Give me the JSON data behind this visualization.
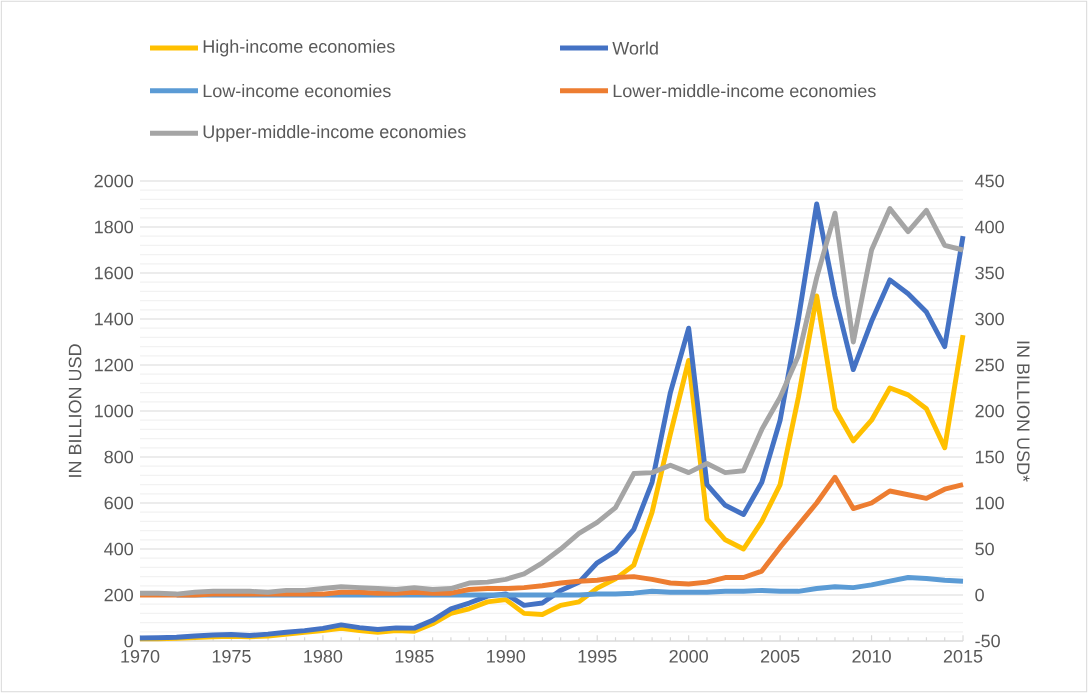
{
  "chart_data": {
    "type": "line",
    "ylabel": "IN BILLION USD",
    "y2label": "IN BILLION USD*",
    "x": [
      1970,
      1971,
      1972,
      1973,
      1974,
      1975,
      1976,
      1977,
      1978,
      1979,
      1980,
      1981,
      1982,
      1983,
      1984,
      1985,
      1986,
      1987,
      1988,
      1989,
      1990,
      1991,
      1992,
      1993,
      1994,
      1995,
      1996,
      1997,
      1998,
      1999,
      2000,
      2001,
      2002,
      2003,
      2004,
      2005,
      2006,
      2007,
      2008,
      2009,
      2010,
      2011,
      2012,
      2013,
      2014,
      2015
    ],
    "series": [
      {
        "name": "High-income economies",
        "color": "#ffc000",
        "values": [
          10,
          10,
          12,
          15,
          18,
          20,
          18,
          22,
          30,
          38,
          45,
          55,
          45,
          38,
          45,
          42,
          75,
          120,
          140,
          170,
          180,
          120,
          115,
          155,
          170,
          230,
          270,
          330,
          560,
          900,
          1220,
          530,
          440,
          400,
          520,
          680,
          1060,
          1500,
          1010,
          870,
          960,
          1100,
          1070,
          1010,
          840,
          1330
        ]
      },
      {
        "name": "World",
        "color": "#4472c4",
        "values": [
          13,
          14,
          16,
          22,
          26,
          28,
          24,
          30,
          38,
          45,
          55,
          70,
          58,
          50,
          57,
          56,
          90,
          140,
          165,
          195,
          205,
          155,
          165,
          220,
          255,
          340,
          390,
          485,
          690,
          1080,
          1360,
          680,
          590,
          550,
          690,
          960,
          1400,
          1900,
          1500,
          1180,
          1390,
          1570,
          1510,
          1430,
          1280,
          1760
        ]
      },
      {
        "name": "Low-income economies",
        "color": "#5b9bd5",
        "axis": "y2",
        "values": [
          null,
          null,
          0,
          0,
          0,
          0,
          0,
          0,
          0,
          0,
          0,
          0,
          0,
          0,
          0,
          0,
          0,
          0,
          0,
          0,
          0,
          0,
          0,
          0,
          0,
          1,
          1,
          2,
          4,
          3,
          3,
          3,
          4,
          4,
          5,
          4,
          4,
          7,
          9,
          8,
          11,
          15,
          19,
          18,
          16,
          15
        ]
      },
      {
        "name": "Lower-middle-income economies",
        "color": "#ed7d31",
        "axis": "y2",
        "values": [
          0,
          0,
          0,
          0,
          1,
          1,
          1,
          1,
          1,
          1,
          1,
          3,
          3,
          2,
          2,
          3,
          2,
          2,
          6,
          7,
          7,
          8,
          10,
          13,
          15,
          16,
          19,
          20,
          17,
          13,
          12,
          14,
          19,
          19,
          26,
          52,
          76,
          100,
          128,
          94,
          100,
          113,
          109,
          105,
          115,
          120
        ]
      },
      {
        "name": "Upper-middle-income economies",
        "color": "#a5a5a5",
        "axis": "y2",
        "values": [
          2,
          2,
          1,
          3,
          4,
          4,
          4,
          3,
          5,
          5,
          7,
          9,
          8,
          7,
          6,
          8,
          6,
          7,
          13,
          14,
          17,
          23,
          35,
          50,
          67,
          79,
          95,
          132,
          133,
          141,
          133,
          143,
          133,
          135,
          180,
          215,
          260,
          345,
          415,
          275,
          375,
          420,
          395,
          418,
          380,
          375
        ]
      }
    ],
    "xlim": [
      1970,
      2015
    ],
    "xticks": [
      1970,
      1975,
      1980,
      1985,
      1990,
      1995,
      2000,
      2005,
      2010,
      2015
    ],
    "ylim": [
      0,
      2000
    ],
    "yticks": [
      0,
      200,
      400,
      600,
      800,
      1000,
      1200,
      1400,
      1600,
      1800,
      2000
    ],
    "y2lim": [
      -50,
      450
    ],
    "y2ticks": [
      -50,
      0,
      50,
      100,
      150,
      200,
      250,
      300,
      350,
      400,
      450
    ],
    "grid": "y",
    "legend": "top"
  }
}
